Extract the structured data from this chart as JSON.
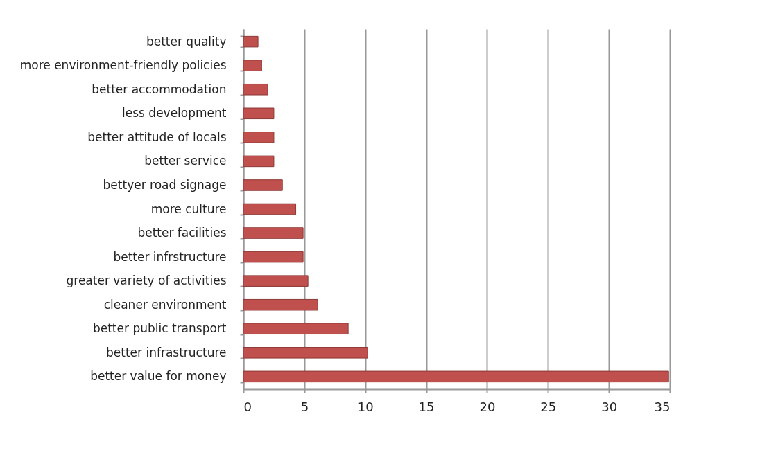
{
  "chart_data": {
    "type": "bar",
    "orientation": "horizontal",
    "categories": [
      "better quality",
      "more environment-friendly policies",
      "better accommodation",
      "less development",
      "better attitude of locals ",
      "better service",
      "bettyer road signage",
      "more culture",
      "better facilities",
      "better infrstructure",
      "greater variety of activities",
      "cleaner environment",
      "better public transport",
      "better infrastructure",
      "better value for money"
    ],
    "values": [
      1.2,
      1.5,
      2,
      2.5,
      2.5,
      2.5,
      3.2,
      4.3,
      4.9,
      4.9,
      5.3,
      6.1,
      8.6,
      10.2,
      34.9
    ],
    "color": "#c0504d",
    "xlim": [
      0,
      35
    ],
    "xticks": [
      0,
      5,
      10,
      15,
      20,
      25,
      30,
      35
    ],
    "grid": "x"
  }
}
